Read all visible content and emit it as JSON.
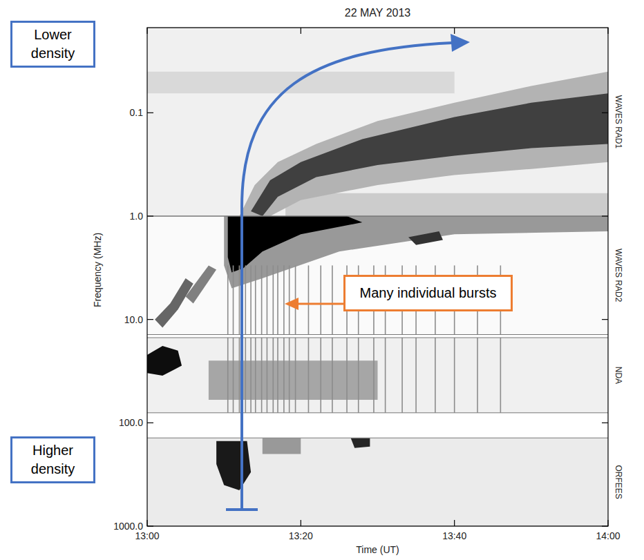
{
  "chart_data": {
    "type": "spectrogram",
    "title": "22 MAY 2013",
    "x_label": "Time (UT)",
    "y_label": "Frequency (MHz)",
    "log": "y",
    "grid": false,
    "xlim": [
      0,
      60
    ],
    "xticks": [
      {
        "value": 0,
        "label": "13:00"
      },
      {
        "value": 20,
        "label": "13:20"
      },
      {
        "value": 40,
        "label": "13:40"
      },
      {
        "value": 60,
        "label": "14:00"
      }
    ],
    "ylim": [
      1000,
      0.015
    ],
    "yticks": [
      0.1,
      {
        "value": 1,
        "label": "1.0"
      },
      {
        "value": 10,
        "label": "10.0"
      },
      {
        "value": 100,
        "label": "100.0"
      },
      {
        "value": 1000,
        "label": "1000.0"
      }
    ],
    "instruments": [
      {
        "name": "WAVES RAD1",
        "range": [
          0.015,
          1
        ],
        "background": 0.06
      },
      {
        "name": "WAVES RAD2",
        "range": [
          1,
          14
        ],
        "background": 0.02
      },
      {
        "name": "NDA",
        "range": [
          15,
          80
        ],
        "background": 0.06
      },
      {
        "name": "ORFEES",
        "range": [
          140,
          1000
        ],
        "background": 0.08
      }
    ],
    "features": [
      {
        "intensity": 0.2,
        "points": [
          [
            18,
            0.6
          ],
          [
            60,
            0.6
          ],
          [
            60,
            1.0
          ],
          [
            18,
            1.0
          ]
        ]
      },
      {
        "intensity": 0.15,
        "points": [
          [
            0,
            0.04
          ],
          [
            40,
            0.04
          ],
          [
            40,
            0.065
          ],
          [
            0,
            0.065
          ]
        ]
      },
      {
        "intensity": 0.3,
        "points": [
          [
            12,
            1.0
          ],
          [
            14,
            0.5
          ],
          [
            17,
            0.3
          ],
          [
            22,
            0.2
          ],
          [
            30,
            0.12
          ],
          [
            40,
            0.08
          ],
          [
            50,
            0.055
          ],
          [
            60,
            0.04
          ],
          [
            60,
            0.3
          ],
          [
            50,
            0.35
          ],
          [
            40,
            0.4
          ],
          [
            30,
            0.5
          ],
          [
            20,
            0.7
          ],
          [
            16,
            1.0
          ]
        ]
      },
      {
        "intensity": 0.75,
        "points": [
          [
            13.5,
            0.9
          ],
          [
            16,
            0.45
          ],
          [
            20,
            0.3
          ],
          [
            28,
            0.18
          ],
          [
            40,
            0.11
          ],
          [
            50,
            0.08
          ],
          [
            60,
            0.065
          ],
          [
            60,
            0.2
          ],
          [
            50,
            0.22
          ],
          [
            40,
            0.26
          ],
          [
            30,
            0.32
          ],
          [
            22,
            0.42
          ],
          [
            17,
            0.65
          ],
          [
            15,
            1.0
          ]
        ]
      },
      {
        "intensity": 0.4,
        "points": [
          [
            10,
            1.0
          ],
          [
            60,
            1.0
          ],
          [
            60,
            1.4
          ],
          [
            40,
            1.5
          ],
          [
            25,
            2.2
          ],
          [
            15,
            4
          ],
          [
            11,
            5
          ],
          [
            10,
            3
          ]
        ]
      },
      {
        "intensity": 1,
        "points": [
          [
            10.5,
            1.0
          ],
          [
            26,
            1.0
          ],
          [
            28,
            1.15
          ],
          [
            20,
            1.5
          ],
          [
            15,
            2.2
          ],
          [
            12.5,
            3.2
          ],
          [
            11,
            3.5
          ],
          [
            10.5,
            2.5
          ]
        ]
      },
      {
        "intensity": 0.8,
        "points": [
          [
            34,
            1.6
          ],
          [
            38,
            1.4
          ],
          [
            38.5,
            1.7
          ],
          [
            35,
            1.9
          ]
        ]
      },
      {
        "intensity": 0.6,
        "points": [
          [
            1,
            10
          ],
          [
            3,
            7
          ],
          [
            5,
            4
          ],
          [
            6,
            4.5
          ],
          [
            4,
            8
          ],
          [
            2,
            12
          ]
        ]
      },
      {
        "intensity": 0.5,
        "points": [
          [
            5,
            6
          ],
          [
            8,
            3
          ],
          [
            9,
            3.3
          ],
          [
            6,
            7
          ]
        ]
      },
      {
        "intensity": 0.35,
        "points": [
          [
            8,
            25
          ],
          [
            30,
            25
          ],
          [
            30,
            60
          ],
          [
            8,
            60
          ]
        ]
      },
      {
        "intensity": 0.95,
        "points": [
          [
            0,
            22
          ],
          [
            2,
            18
          ],
          [
            4,
            20
          ],
          [
            4.5,
            28
          ],
          [
            2,
            35
          ],
          [
            0,
            33
          ]
        ]
      },
      {
        "intensity": 0.4,
        "points": [
          [
            15,
            140
          ],
          [
            20,
            140
          ],
          [
            20,
            200
          ],
          [
            15,
            200
          ]
        ]
      },
      {
        "intensity": 0.9,
        "points": [
          [
            9,
            150
          ],
          [
            13,
            150
          ],
          [
            13.5,
            300
          ],
          [
            12,
            450
          ],
          [
            10,
            400
          ],
          [
            9,
            250
          ]
        ]
      },
      {
        "intensity": 0.85,
        "points": [
          [
            26.5,
            140
          ],
          [
            29,
            140
          ],
          [
            29,
            170
          ],
          [
            27,
            175
          ]
        ]
      }
    ],
    "bursts": {
      "times": [
        10.5,
        11.2,
        12,
        12.8,
        13.5,
        14.1,
        14.9,
        15.6,
        16.4,
        17,
        17.8,
        18.5,
        19.3,
        21,
        22.6,
        24.1,
        26,
        27.5,
        29.5,
        31,
        33.2,
        35,
        37.5,
        40,
        43,
        46
      ],
      "range": [
        3,
        80
      ],
      "intensity": 0.45
    },
    "annotations": [
      "Lower density",
      "Higher density",
      "Many individual bursts"
    ]
  }
}
